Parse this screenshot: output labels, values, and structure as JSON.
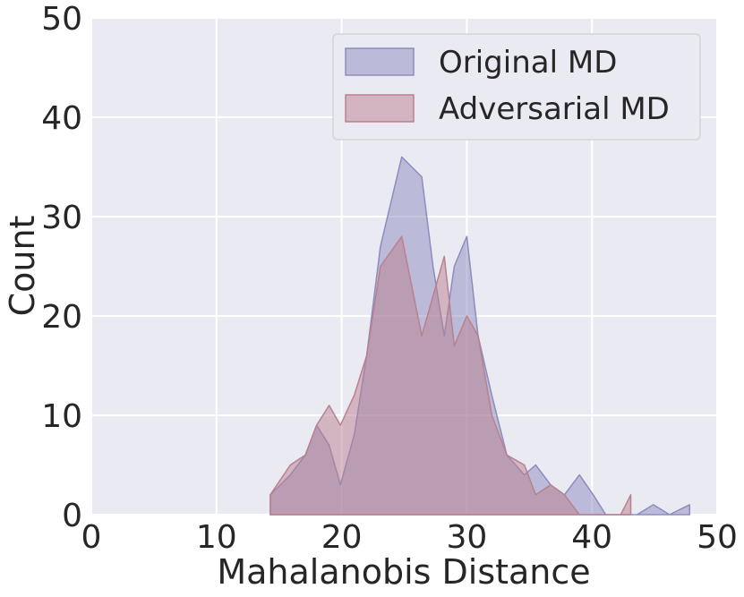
{
  "chart_data": {
    "type": "area",
    "xlabel": "Mahalanobis Distance",
    "ylabel": "Count",
    "xlim": [
      0,
      50
    ],
    "ylim": [
      0,
      50
    ],
    "xticks": [
      "0",
      "10",
      "20",
      "30",
      "40",
      "50"
    ],
    "yticks": [
      "0",
      "10",
      "20",
      "30",
      "40",
      "50"
    ],
    "grid": true,
    "legend_position": "top-right",
    "series": [
      {
        "name": "Original MD",
        "color": "#8c8cbf",
        "x": [
          14.3,
          15.9,
          17.1,
          18.0,
          19.0,
          19.9,
          21.0,
          22.0,
          23.1,
          24.8,
          26.4,
          27.3,
          28.2,
          29.0,
          30.0,
          30.9,
          32.0,
          33.2,
          34.6,
          35.5,
          36.7,
          37.8,
          39.0,
          40.1,
          41.1,
          42.3,
          43.6,
          44.9,
          46.2,
          47.8
        ],
        "y": [
          2,
          4,
          6,
          9,
          7,
          3,
          8,
          16,
          27,
          36,
          34,
          25,
          18,
          25,
          28,
          18,
          12,
          6,
          4,
          5,
          3,
          2,
          4,
          2,
          0,
          0,
          0,
          1,
          0,
          1
        ]
      },
      {
        "name": "Adversarial MD",
        "color": "#b9808e",
        "x": [
          14.3,
          15.9,
          17.1,
          18.0,
          19.0,
          19.9,
          21.0,
          22.0,
          23.1,
          24.8,
          26.4,
          27.3,
          28.2,
          29.0,
          30.0,
          30.9,
          32.0,
          33.2,
          34.6,
          35.5,
          36.7,
          37.8,
          39.0,
          40.1,
          41.1,
          42.3,
          43.1
        ],
        "y": [
          2,
          5,
          6,
          9,
          11,
          9,
          12,
          16,
          25,
          28,
          18,
          22,
          26,
          17,
          20,
          18,
          10,
          6,
          5,
          2,
          3,
          2,
          0,
          0,
          0,
          0,
          2
        ]
      }
    ]
  }
}
